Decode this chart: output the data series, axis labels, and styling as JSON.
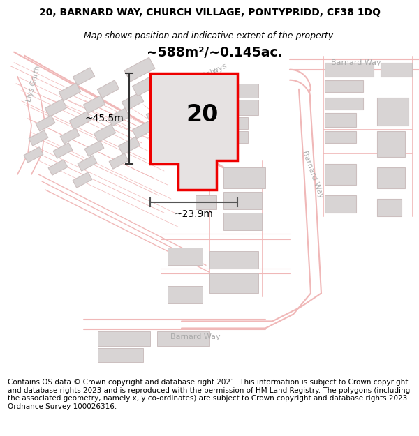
{
  "title_line1": "20, BARNARD WAY, CHURCH VILLAGE, PONTYPRIDD, CF38 1DQ",
  "title_line2": "Map shows position and indicative extent of the property.",
  "footer_text": "Contains OS data © Crown copyright and database right 2021. This information is subject to Crown copyright and database rights 2023 and is reproduced with the permission of HM Land Registry. The polygons (including the associated geometry, namely x, y co-ordinates) are subject to Crown copyright and database rights 2023 Ordnance Survey 100026316.",
  "area_label": "~588m²/~0.145ac.",
  "width_label": "~23.9m",
  "height_label": "~45.5m",
  "plot_number": "20",
  "map_bg": "#ffffff",
  "plot_fill": "#e6e2e2",
  "plot_border": "#ee0000",
  "street_color": "#f0b8b8",
  "building_fill": "#d8d4d4",
  "building_ec": "#ccbfbf",
  "road_label_color": "#aaaaaa",
  "title_fontsize": 10,
  "subtitle_fontsize": 9,
  "footer_fontsize": 7.5,
  "dim_line_color": "#333333",
  "width_line_color": "#555555"
}
